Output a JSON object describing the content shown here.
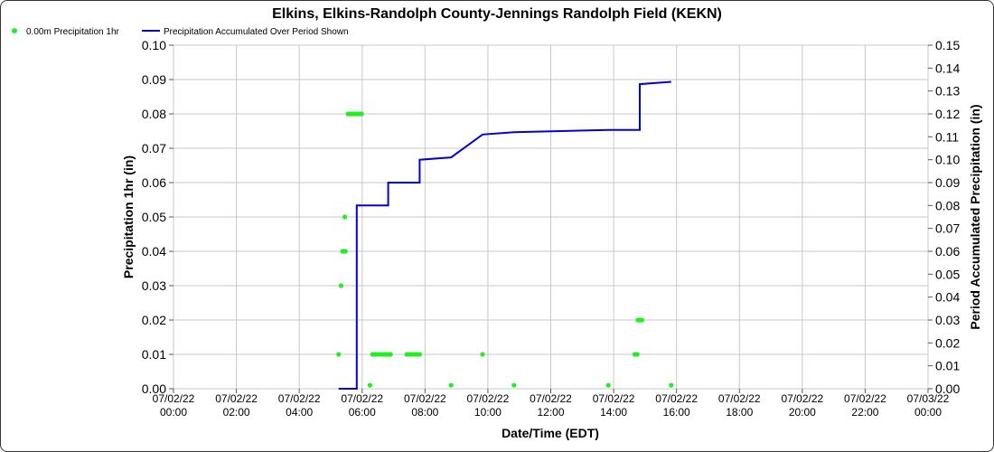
{
  "chart_data": {
    "type": "line",
    "title": "Elkins, Elkins-Randolph County-Jennings Randolph Field (KEKN)",
    "xlabel": "Date/Time (EDT)",
    "ylabel": "Precipitation 1hr (in)",
    "y2label": "Period Accumulated Precipitation (in)",
    "xlim": [
      0,
      24
    ],
    "ylim": [
      0,
      0.1
    ],
    "y2lim": [
      0,
      0.15
    ],
    "x_ticks": [
      {
        "x": 0,
        "line1": "07/02/22",
        "line2": "00:00"
      },
      {
        "x": 2,
        "line1": "07/02/22",
        "line2": "02:00"
      },
      {
        "x": 4,
        "line1": "07/02/22",
        "line2": "04:00"
      },
      {
        "x": 6,
        "line1": "07/02/22",
        "line2": "06:00"
      },
      {
        "x": 8,
        "line1": "07/02/22",
        "line2": "08:00"
      },
      {
        "x": 10,
        "line1": "07/02/22",
        "line2": "10:00"
      },
      {
        "x": 12,
        "line1": "07/02/22",
        "line2": "12:00"
      },
      {
        "x": 14,
        "line1": "07/02/22",
        "line2": "14:00"
      },
      {
        "x": 16,
        "line1": "07/02/22",
        "line2": "16:00"
      },
      {
        "x": 18,
        "line1": "07/02/22",
        "line2": "18:00"
      },
      {
        "x": 20,
        "line1": "07/02/22",
        "line2": "20:00"
      },
      {
        "x": 22,
        "line1": "07/02/22",
        "line2": "22:00"
      },
      {
        "x": 24,
        "line1": "07/03/22",
        "line2": "00:00"
      }
    ],
    "y_ticks": [
      "0.00",
      "0.01",
      "0.02",
      "0.03",
      "0.04",
      "0.05",
      "0.06",
      "0.07",
      "0.08",
      "0.09",
      "0.10"
    ],
    "y2_ticks": [
      "0.00",
      "0.01",
      "0.02",
      "0.03",
      "0.04",
      "0.05",
      "0.06",
      "0.07",
      "0.08",
      "0.09",
      "0.10",
      "0.11",
      "0.12",
      "0.13",
      "0.14",
      "0.15"
    ],
    "grid": true,
    "legend_position": "top-left",
    "series": [
      {
        "name": "0.00m Precipitation 1hr",
        "type": "scatter",
        "axis": "left",
        "color": "#22ee22",
        "points": [
          [
            5.25,
            0.01
          ],
          [
            5.33,
            0.03
          ],
          [
            5.38,
            0.04
          ],
          [
            5.42,
            0.04
          ],
          [
            5.47,
            0.04
          ],
          [
            5.45,
            0.05
          ],
          [
            5.55,
            0.08
          ],
          [
            5.62,
            0.08
          ],
          [
            5.68,
            0.08
          ],
          [
            5.75,
            0.08
          ],
          [
            5.82,
            0.08
          ],
          [
            5.88,
            0.08
          ],
          [
            5.93,
            0.08
          ],
          [
            5.98,
            0.08
          ],
          [
            6.25,
            0.001
          ],
          [
            6.33,
            0.01
          ],
          [
            6.42,
            0.01
          ],
          [
            6.5,
            0.01
          ],
          [
            6.58,
            0.01
          ],
          [
            6.67,
            0.01
          ],
          [
            6.75,
            0.01
          ],
          [
            6.83,
            0.01
          ],
          [
            6.9,
            0.01
          ],
          [
            7.42,
            0.01
          ],
          [
            7.5,
            0.01
          ],
          [
            7.58,
            0.01
          ],
          [
            7.67,
            0.01
          ],
          [
            7.75,
            0.01
          ],
          [
            7.83,
            0.01
          ],
          [
            8.83,
            0.001
          ],
          [
            9.83,
            0.01
          ],
          [
            10.83,
            0.001
          ],
          [
            13.83,
            0.001
          ],
          [
            14.67,
            0.01
          ],
          [
            14.75,
            0.01
          ],
          [
            14.77,
            0.02
          ],
          [
            14.83,
            0.02
          ],
          [
            14.9,
            0.02
          ],
          [
            15.83,
            0.001
          ]
        ]
      },
      {
        "name": "Precipitation Accumulated Over Period Shown",
        "type": "line",
        "axis": "right",
        "color": "#0000dd",
        "points": [
          [
            5.25,
            0.0
          ],
          [
            5.83,
            0.0
          ],
          [
            5.83,
            0.08
          ],
          [
            6.83,
            0.08
          ],
          [
            6.83,
            0.09
          ],
          [
            7.83,
            0.09
          ],
          [
            7.83,
            0.1
          ],
          [
            8.83,
            0.101
          ],
          [
            9.83,
            0.111
          ],
          [
            10.83,
            0.112
          ],
          [
            13.83,
            0.113
          ],
          [
            14.83,
            0.113
          ],
          [
            14.83,
            0.133
          ],
          [
            15.83,
            0.134
          ]
        ]
      }
    ]
  }
}
